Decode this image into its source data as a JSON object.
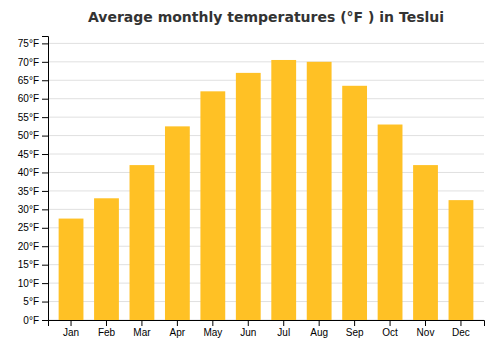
{
  "chart_data": {
    "type": "bar",
    "title": "Average monthly temperatures (°F ) in Teslui",
    "categories": [
      "Jan",
      "Feb",
      "Mar",
      "Apr",
      "May",
      "Jun",
      "Jul",
      "Aug",
      "Sep",
      "Oct",
      "Nov",
      "Dec"
    ],
    "values": [
      27.5,
      33.0,
      42.0,
      52.5,
      62.0,
      67.0,
      70.5,
      70.0,
      63.5,
      53.0,
      42.0,
      32.5
    ],
    "color": "#FFC125",
    "ylim": [
      0,
      77
    ],
    "yticks": [
      {
        "value": 0,
        "label": "0°F"
      },
      {
        "value": 5,
        "label": "5°F"
      },
      {
        "value": 10,
        "label": "10°F"
      },
      {
        "value": 15,
        "label": "15°F"
      },
      {
        "value": 20,
        "label": "20°F"
      },
      {
        "value": 25,
        "label": "25°F"
      },
      {
        "value": 30,
        "label": "30°F"
      },
      {
        "value": 35,
        "label": "35°F"
      },
      {
        "value": 40,
        "label": "40°F"
      },
      {
        "value": 45,
        "label": "45°F"
      },
      {
        "value": 50,
        "label": "50°F"
      },
      {
        "value": 55,
        "label": "55°F"
      },
      {
        "value": 60,
        "label": "60°F"
      },
      {
        "value": 65,
        "label": "65°F"
      },
      {
        "value": 70,
        "label": "70°F"
      },
      {
        "value": 75,
        "label": "75°F"
      }
    ],
    "grid": true
  }
}
